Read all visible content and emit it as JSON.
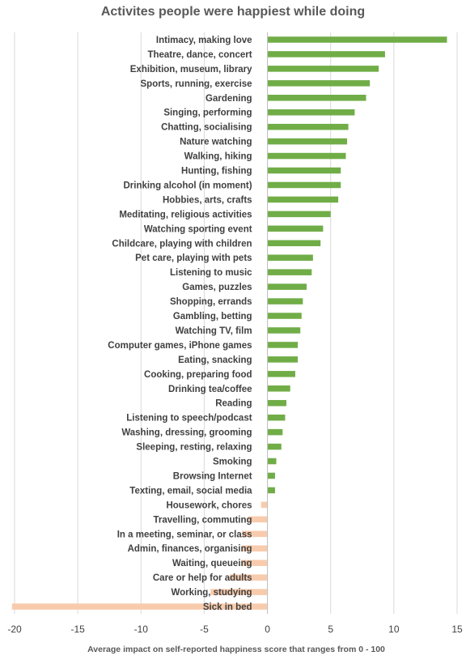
{
  "chart_data": {
    "type": "bar",
    "orientation": "horizontal",
    "title": "Activites people were happiest while doing",
    "xlabel": "Average impact on self-reported happiness score that ranges from 0 - 100",
    "ylabel": "",
    "xlim": [
      -20,
      15
    ],
    "xticks": [
      -20,
      -15,
      -10,
      -5,
      0,
      5,
      10,
      15
    ],
    "grid": true,
    "positive_color": "#70ad47",
    "negative_color": "#f8cbad",
    "categories": [
      "Intimacy, making love",
      "Theatre, dance, concert",
      "Exhibition, museum, library",
      "Sports, running, exercise",
      "Gardening",
      "Singing, performing",
      "Chatting, socialising",
      "Nature watching",
      "Walking, hiking",
      "Hunting, fishing",
      "Drinking alcohol (in moment)",
      "Hobbies, arts, crafts",
      "Meditating, religious activities",
      "Watching sporting event",
      "Childcare, playing with children",
      "Pet care, playing with pets",
      "Listening to music",
      "Games, puzzles",
      "Shopping, errands",
      "Gambling, betting",
      "Watching TV, film",
      "Computer games, iPhone games",
      "Eating, snacking",
      "Cooking, preparing food",
      "Drinking tea/coffee",
      "Reading",
      "Listening to speech/podcast",
      "Washing, dressing, grooming",
      "Sleeping, resting, relaxing",
      "Smoking",
      "Browsing Internet",
      "Texting, email, social media",
      "Housework, chores",
      "Travelling, commuting",
      "In a meeting, seminar, or class",
      "Admin, finances, organising",
      "Waiting, queueing",
      "Care or help for adults",
      "Working, studying",
      "Sick in bed"
    ],
    "values": [
      14.2,
      9.3,
      8.8,
      8.1,
      7.8,
      6.9,
      6.4,
      6.3,
      6.2,
      5.8,
      5.8,
      5.6,
      5.0,
      4.4,
      4.2,
      3.6,
      3.5,
      3.1,
      2.8,
      2.7,
      2.6,
      2.4,
      2.4,
      2.2,
      1.8,
      1.5,
      1.4,
      1.2,
      1.1,
      0.7,
      0.6,
      0.6,
      -0.5,
      -1.5,
      -2.0,
      -2.0,
      -2.0,
      -3.0,
      -4.5,
      -20.2
    ]
  }
}
